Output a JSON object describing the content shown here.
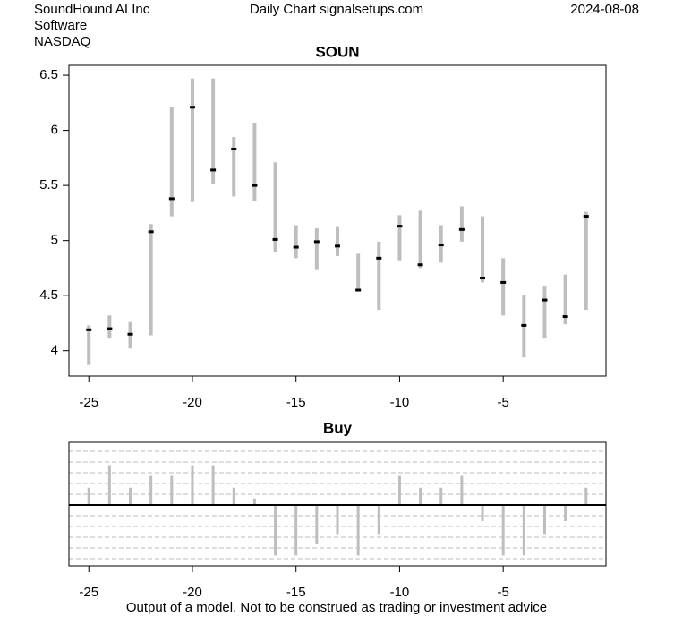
{
  "header": {
    "company": "SoundHound AI Inc",
    "sector": "Software",
    "exchange": "NASDAQ",
    "source": "Daily Chart signalsetups.com",
    "date": "2024-08-08"
  },
  "footer": "Output of a model. Not to be construed as trading or investment advice",
  "chart_data": [
    {
      "type": "hilo",
      "title": "SOUN",
      "color": "#bebebe",
      "x": [
        -25,
        -24,
        -23,
        -22,
        -21,
        -20,
        -19,
        -18,
        -17,
        -16,
        -15,
        -14,
        -13,
        -12,
        -11,
        -10,
        -9,
        -8,
        -7,
        -6,
        -5,
        -4,
        -3,
        -2,
        -1
      ],
      "high": [
        4.23,
        4.32,
        4.26,
        5.15,
        6.21,
        6.47,
        6.47,
        5.94,
        6.07,
        5.71,
        5.14,
        5.11,
        5.13,
        4.88,
        4.99,
        5.23,
        5.27,
        5.14,
        5.31,
        5.22,
        4.84,
        4.51,
        4.59,
        4.69,
        5.26
      ],
      "low": [
        3.87,
        4.11,
        4.02,
        4.14,
        5.22,
        5.35,
        5.51,
        5.4,
        5.36,
        4.9,
        4.84,
        4.74,
        4.86,
        4.54,
        4.37,
        4.82,
        4.75,
        4.8,
        4.99,
        4.62,
        4.32,
        3.94,
        4.11,
        4.24,
        4.37
      ],
      "close": [
        4.19,
        4.2,
        4.15,
        5.08,
        5.38,
        6.21,
        5.64,
        5.83,
        5.5,
        5.01,
        4.94,
        4.99,
        4.95,
        4.55,
        4.84,
        5.13,
        4.78,
        4.96,
        5.1,
        4.66,
        4.62,
        4.23,
        4.46,
        4.31,
        5.22
      ],
      "xlim": [
        -25.96,
        -0.04
      ],
      "ylim": [
        3.77,
        6.59
      ],
      "xticks": [
        -25,
        -20,
        -15,
        -10,
        -5
      ],
      "yticks": [
        4.0,
        4.5,
        5.0,
        5.5,
        6.0,
        6.5
      ]
    },
    {
      "type": "bar",
      "title": "Buy",
      "color": "#bebebe",
      "x": [
        -25,
        -24,
        -23,
        -22,
        -21,
        -20,
        -19,
        -18,
        -17,
        -16,
        -15,
        -14,
        -13,
        -12,
        -11,
        -10,
        -9,
        -8,
        -7,
        -6,
        -5,
        -4,
        -3,
        -2,
        -1
      ],
      "values": [
        1.6,
        3.7,
        1.6,
        2.7,
        2.7,
        3.7,
        3.7,
        1.6,
        0.6,
        -4.7,
        -4.7,
        -3.6,
        -2.7,
        -4.7,
        -2.7,
        2.7,
        1.6,
        1.6,
        2.7,
        -1.5,
        -4.7,
        -4.7,
        -2.7,
        -1.5,
        1.6
      ],
      "xlim": [
        -25.96,
        -0.04
      ],
      "ylim": [
        -5.67,
        5.83
      ],
      "xticks": [
        -25,
        -20,
        -15,
        -10,
        -5
      ],
      "grid_lines": [
        -5,
        -4,
        -3,
        -2,
        -1,
        1,
        2,
        3,
        4,
        5
      ],
      "baseline": 0
    }
  ]
}
